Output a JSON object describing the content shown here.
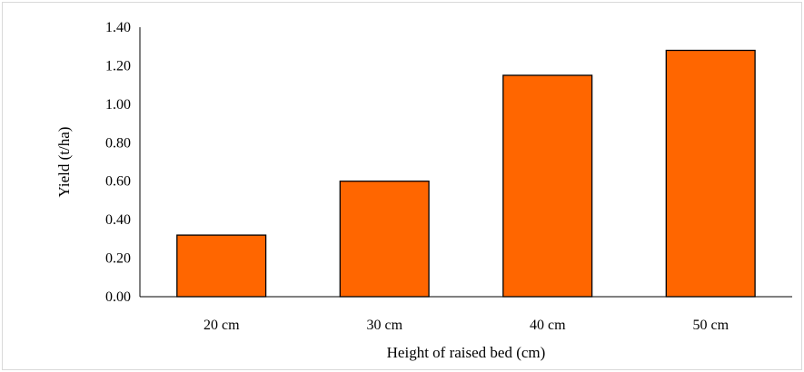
{
  "chart_data": {
    "type": "bar",
    "categories": [
      "20 cm",
      "30 cm",
      "40 cm",
      "50 cm"
    ],
    "values": [
      0.32,
      0.6,
      1.15,
      1.28
    ],
    "title": "",
    "xlabel": "Height of raised bed (cm)",
    "ylabel": "Yield (t/ha)",
    "ylim": [
      0,
      1.4
    ],
    "yticks": [
      "0.00",
      "0.20",
      "0.40",
      "0.60",
      "0.80",
      "1.00",
      "1.20",
      "1.40"
    ],
    "grid": false,
    "legend": "none",
    "colors": {
      "bar_fill": "#FF6600",
      "bar_stroke": "#000000",
      "axis": "#000000"
    }
  }
}
